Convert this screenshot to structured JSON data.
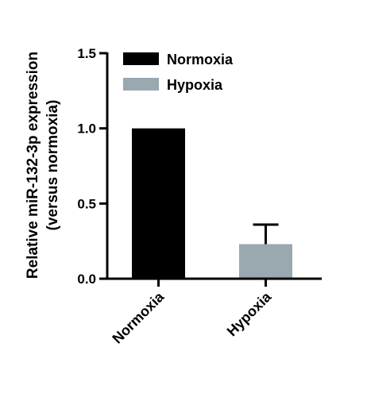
{
  "chart_data": {
    "type": "bar",
    "title": "",
    "xlabel": "",
    "ylabel": [
      "Relative miR-132-3p expression",
      "(versus normoxia)"
    ],
    "categories": [
      "Normoxia",
      "Hypoxia"
    ],
    "values": [
      1.0,
      0.23
    ],
    "error_upper": [
      0.0,
      0.36
    ],
    "colors": [
      "#000000",
      "#9aa8b0"
    ],
    "ylim": [
      0,
      1.5
    ],
    "yticks": [
      0.0,
      0.5,
      1.0,
      1.5
    ],
    "ytick_labels": [
      "0.0",
      "0.5",
      "1.0",
      "1.5"
    ],
    "legend": {
      "placement": "top-right",
      "entries": [
        {
          "label": "Normoxia",
          "color": "#000000"
        },
        {
          "label": "Hypoxia",
          "color": "#9aa8b0"
        }
      ]
    },
    "grid": false
  }
}
